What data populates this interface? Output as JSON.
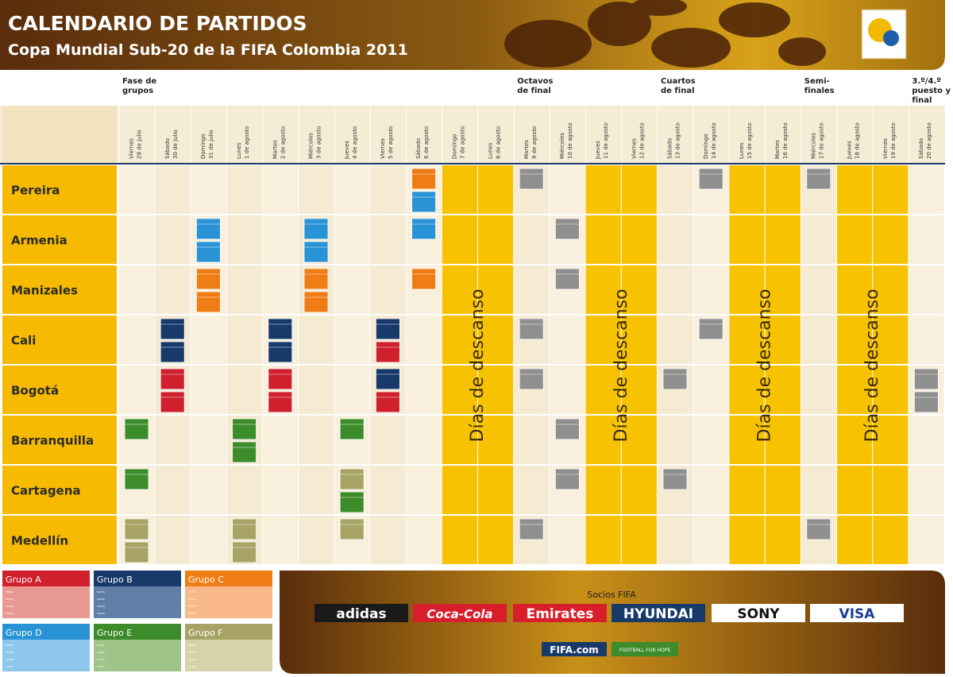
{
  "header": {
    "title": "CALENDARIO DE PARTIDOS",
    "subtitle": "Copa Mundial Sub-20 de la FIFA Colombia 2011"
  },
  "phases": [
    "Fase de grupos",
    "Octavos de final",
    "Cuartos de final",
    "Semi-finales",
    "3.º/4.º puesto y final"
  ],
  "days": [
    {
      "weekday": "Viernes",
      "date": "29 de julio"
    },
    {
      "weekday": "Sábado",
      "date": "30 de julio"
    },
    {
      "weekday": "Domingo",
      "date": "31 de julio"
    },
    {
      "weekday": "Lunes",
      "date": "1 de agosto"
    },
    {
      "weekday": "Martes",
      "date": "2 de agosto"
    },
    {
      "weekday": "Miércoles",
      "date": "3 de agosto"
    },
    {
      "weekday": "Jueves",
      "date": "4 de agosto"
    },
    {
      "weekday": "Viernes",
      "date": "5 de agosto"
    },
    {
      "weekday": "Sábado",
      "date": "6 de agosto"
    },
    {
      "weekday": "Domingo",
      "date": "7 de agosto"
    },
    {
      "weekday": "Lunes",
      "date": "8 de agosto"
    },
    {
      "weekday": "Martes",
      "date": "9 de agosto"
    },
    {
      "weekday": "Miércoles",
      "date": "10 de agosto"
    },
    {
      "weekday": "Jueves",
      "date": "11 de agosto"
    },
    {
      "weekday": "Viernes",
      "date": "12 de agosto"
    },
    {
      "weekday": "Sábado",
      "date": "13 de agosto"
    },
    {
      "weekday": "Domingo",
      "date": "14 de agosto"
    },
    {
      "weekday": "Lunes",
      "date": "15 de agosto"
    },
    {
      "weekday": "Martes",
      "date": "16 de agosto"
    },
    {
      "weekday": "Miércoles",
      "date": "17 de agosto"
    },
    {
      "weekday": "Jueves",
      "date": "18 de agosto"
    },
    {
      "weekday": "Viernes",
      "date": "19 de agosto"
    },
    {
      "weekday": "Sábado",
      "date": "20 de agosto"
    }
  ],
  "cities": [
    "Pereira",
    "Armenia",
    "Manizales",
    "Cali",
    "Bogotá",
    "Barranquilla",
    "Cartagena",
    "Medellín"
  ],
  "rest_label": "Días de descanso",
  "groups": [
    "Grupo A",
    "Grupo B",
    "Grupo C",
    "Grupo D",
    "Grupo E",
    "Grupo F"
  ],
  "sponsors": {
    "heading": "Socios FIFA",
    "brands": [
      "adidas",
      "Coca-Cola",
      "Emirates",
      "HYUNDAI",
      "SONY",
      "VISA"
    ],
    "site": "FIFA.com",
    "program": "FOOTBALL FOR HOPE"
  }
}
